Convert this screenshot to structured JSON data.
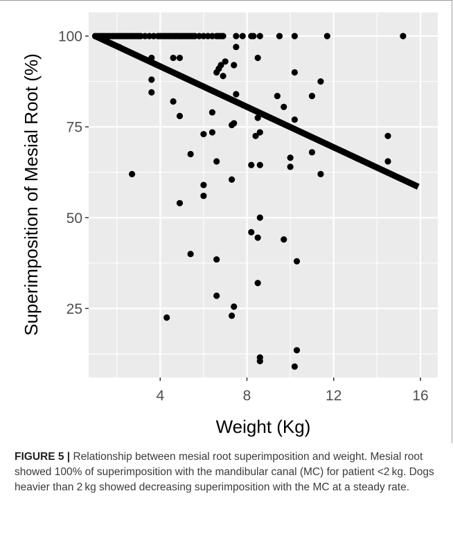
{
  "figure_label": "FIGURE 5 |",
  "caption": " Relationship between mesial root superimposition and weight. Mesial root showed 100% of superimposition with the mandibular canal (MC) for patient <2 kg. Dogs heavier than 2 kg showed decreasing superimposition with the MC at a steady rate.",
  "colors": {
    "panel_background": "#ebebeb",
    "gridline": "#ffffff",
    "point": "#000000",
    "frame": "#999999"
  },
  "chart_data": {
    "type": "scatter",
    "title": "",
    "xlabel": "Weight (Kg)",
    "ylabel": "Superimposition of Mesial Root (%)",
    "xlim": [
      0.7,
      16.8
    ],
    "ylim": [
      6,
      106.5
    ],
    "x_ticks": [
      4,
      8,
      12,
      16
    ],
    "x_tick_labels": [
      "4",
      "8",
      "12",
      "16"
    ],
    "y_ticks": [
      25,
      50,
      75,
      100
    ],
    "y_tick_labels": [
      "25",
      "50",
      "75",
      "100"
    ],
    "grid": true,
    "legend": "none",
    "regression_line": {
      "x": [
        1.0,
        15.9
      ],
      "y": [
        100,
        58.5
      ]
    },
    "points": [
      [
        1.0,
        100
      ],
      [
        1.1,
        100
      ],
      [
        1.2,
        100
      ],
      [
        1.3,
        100
      ],
      [
        1.4,
        100
      ],
      [
        1.5,
        100
      ],
      [
        1.6,
        100
      ],
      [
        1.7,
        100
      ],
      [
        1.8,
        100
      ],
      [
        1.9,
        100
      ],
      [
        2.0,
        100
      ],
      [
        2.1,
        100
      ],
      [
        2.2,
        100
      ],
      [
        2.3,
        100
      ],
      [
        2.4,
        100
      ],
      [
        2.5,
        100
      ],
      [
        2.6,
        100
      ],
      [
        2.7,
        100
      ],
      [
        2.8,
        100
      ],
      [
        2.9,
        100
      ],
      [
        3.0,
        100
      ],
      [
        3.1,
        100
      ],
      [
        3.3,
        100
      ],
      [
        3.5,
        100
      ],
      [
        3.7,
        100
      ],
      [
        3.9,
        100
      ],
      [
        4.0,
        100
      ],
      [
        4.1,
        100
      ],
      [
        4.2,
        100
      ],
      [
        4.3,
        100
      ],
      [
        4.4,
        100
      ],
      [
        4.5,
        100
      ],
      [
        4.6,
        100
      ],
      [
        4.7,
        100
      ],
      [
        4.8,
        100
      ],
      [
        4.9,
        100
      ],
      [
        5.0,
        100
      ],
      [
        5.1,
        100
      ],
      [
        5.2,
        100
      ],
      [
        5.3,
        100
      ],
      [
        5.4,
        100
      ],
      [
        5.5,
        100
      ],
      [
        5.6,
        100
      ],
      [
        5.8,
        100
      ],
      [
        6.0,
        100
      ],
      [
        6.2,
        100
      ],
      [
        6.4,
        100
      ],
      [
        6.6,
        100
      ],
      [
        6.7,
        100
      ],
      [
        6.8,
        100
      ],
      [
        6.9,
        100
      ],
      [
        7.5,
        100
      ],
      [
        7.8,
        100
      ],
      [
        8.2,
        100
      ],
      [
        8.3,
        100
      ],
      [
        8.6,
        100
      ],
      [
        9.5,
        100
      ],
      [
        10.2,
        100
      ],
      [
        11.7,
        100
      ],
      [
        15.2,
        100
      ],
      [
        2.1,
        97
      ],
      [
        3.6,
        94
      ],
      [
        4.6,
        94
      ],
      [
        4.9,
        94
      ],
      [
        6.8,
        92
      ],
      [
        7.0,
        93
      ],
      [
        6.7,
        91
      ],
      [
        6.6,
        90
      ],
      [
        7.5,
        97
      ],
      [
        7.4,
        92
      ],
      [
        6.9,
        89
      ],
      [
        8.5,
        94
      ],
      [
        10.2,
        90
      ],
      [
        3.6,
        88
      ],
      [
        3.6,
        84.5
      ],
      [
        4.6,
        82
      ],
      [
        4.9,
        78
      ],
      [
        6.4,
        79
      ],
      [
        6.0,
        73
      ],
      [
        6.4,
        73.5
      ],
      [
        7.3,
        75.5
      ],
      [
        7.4,
        76
      ],
      [
        8.5,
        77.5
      ],
      [
        8.6,
        73.5
      ],
      [
        8.4,
        72.5
      ],
      [
        7.5,
        84
      ],
      [
        9.4,
        83.5
      ],
      [
        9.7,
        80.5
      ],
      [
        11.0,
        83.5
      ],
      [
        11.4,
        87.5
      ],
      [
        10.0,
        66.5
      ],
      [
        10.0,
        64
      ],
      [
        10.2,
        77
      ],
      [
        11.0,
        68
      ],
      [
        11.4,
        62
      ],
      [
        14.5,
        72.5
      ],
      [
        14.5,
        65.5
      ],
      [
        2.7,
        62
      ],
      [
        5.4,
        67.5
      ],
      [
        6.6,
        65.5
      ],
      [
        6.0,
        59
      ],
      [
        6.0,
        56
      ],
      [
        7.3,
        60.5
      ],
      [
        8.2,
        64.5
      ],
      [
        8.6,
        64.5
      ],
      [
        4.9,
        54
      ],
      [
        8.2,
        46
      ],
      [
        8.5,
        44.5
      ],
      [
        8.6,
        50
      ],
      [
        9.7,
        44
      ],
      [
        5.4,
        40
      ],
      [
        6.6,
        38.5
      ],
      [
        10.3,
        38
      ],
      [
        8.5,
        32
      ],
      [
        6.6,
        28.5
      ],
      [
        7.4,
        25.5
      ],
      [
        7.3,
        23
      ],
      [
        4.3,
        22.5
      ],
      [
        8.6,
        11.5
      ],
      [
        8.6,
        10.5
      ],
      [
        10.3,
        13.5
      ],
      [
        10.2,
        9
      ]
    ]
  }
}
